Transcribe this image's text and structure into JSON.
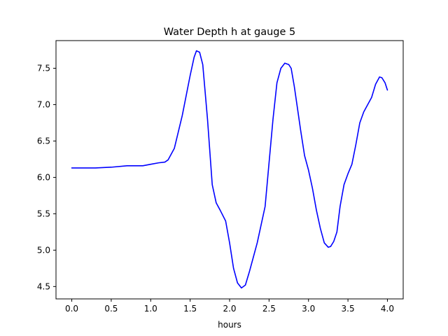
{
  "chart_data": {
    "type": "line",
    "title": "Water Depth h at gauge 5",
    "xlabel": "hours",
    "ylabel": "",
    "xlim": [
      -0.2,
      4.2
    ],
    "ylim": [
      4.33,
      7.88
    ],
    "xticks": [
      0.0,
      0.5,
      1.0,
      1.5,
      2.0,
      2.5,
      3.0,
      3.5,
      4.0
    ],
    "xtick_labels": [
      "0.0",
      "0.5",
      "1.0",
      "1.5",
      "2.0",
      "2.5",
      "3.0",
      "3.5",
      "4.0"
    ],
    "yticks": [
      4.5,
      5.0,
      5.5,
      6.0,
      6.5,
      7.0,
      7.5
    ],
    "ytick_labels": [
      "4.5",
      "5.0",
      "5.5",
      "6.0",
      "6.5",
      "7.0",
      "7.5"
    ],
    "grid": false,
    "legend": "none",
    "series": [
      {
        "color": "#0000ff",
        "x": [
          0.0,
          0.3,
          0.5,
          0.7,
          0.9,
          1.0,
          1.1,
          1.18,
          1.22,
          1.3,
          1.4,
          1.5,
          1.55,
          1.58,
          1.62,
          1.66,
          1.72,
          1.78,
          1.83,
          1.88,
          1.95,
          2.0,
          2.05,
          2.1,
          2.15,
          2.2,
          2.25,
          2.3,
          2.35,
          2.4,
          2.45,
          2.5,
          2.55,
          2.6,
          2.65,
          2.7,
          2.75,
          2.78,
          2.82,
          2.86,
          2.9,
          2.95,
          3.0,
          3.05,
          3.1,
          3.15,
          3.2,
          3.25,
          3.28,
          3.32,
          3.36,
          3.4,
          3.45,
          3.5,
          3.55,
          3.6,
          3.65,
          3.7,
          3.75,
          3.8,
          3.85,
          3.9,
          3.93,
          3.97,
          4.0
        ],
        "y": [
          6.13,
          6.13,
          6.14,
          6.16,
          6.16,
          6.18,
          6.2,
          6.21,
          6.24,
          6.4,
          6.85,
          7.4,
          7.65,
          7.74,
          7.72,
          7.55,
          6.8,
          5.9,
          5.65,
          5.55,
          5.4,
          5.1,
          4.75,
          4.55,
          4.48,
          4.52,
          4.7,
          4.9,
          5.1,
          5.35,
          5.6,
          6.2,
          6.8,
          7.3,
          7.5,
          7.57,
          7.55,
          7.5,
          7.25,
          6.95,
          6.65,
          6.3,
          6.1,
          5.85,
          5.55,
          5.3,
          5.1,
          5.04,
          5.05,
          5.12,
          5.25,
          5.6,
          5.9,
          6.05,
          6.18,
          6.45,
          6.75,
          6.9,
          7.0,
          7.1,
          7.28,
          7.38,
          7.37,
          7.3,
          7.2
        ]
      }
    ]
  }
}
